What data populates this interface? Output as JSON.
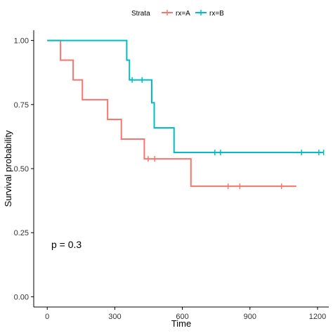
{
  "chart_data": {
    "type": "line",
    "subtype": "kaplan-meier",
    "xlabel": "Time",
    "ylabel": "Survival probability",
    "xlim": [
      -60,
      1250
    ],
    "ylim": [
      -0.04,
      1.04
    ],
    "x_ticks": [
      0,
      300,
      600,
      900,
      1200
    ],
    "x_tick_labels": [
      "0",
      "300",
      "600",
      "900",
      "1200"
    ],
    "y_ticks": [
      0,
      0.25,
      0.5,
      0.75,
      1.0
    ],
    "y_tick_labels": [
      "0.00",
      "0.25",
      "0.50",
      "0.75",
      "1.00"
    ],
    "grid": false,
    "legend": {
      "title": "Strata",
      "placement": "top-center",
      "entries": [
        "rx=A",
        "rx=B"
      ]
    },
    "annotation": "p = 0.3",
    "series": [
      {
        "name": "rx=A",
        "color": "#F8766D",
        "steps": [
          {
            "x": 0,
            "y": 1.0
          },
          {
            "x": 59,
            "y": 0.923
          },
          {
            "x": 115,
            "y": 0.846
          },
          {
            "x": 156,
            "y": 0.769
          },
          {
            "x": 268,
            "y": 0.692
          },
          {
            "x": 329,
            "y": 0.615
          },
          {
            "x": 431,
            "y": 0.538
          },
          {
            "x": 638,
            "y": 0.431
          },
          {
            "x": 1106,
            "y": 0.431
          }
        ],
        "censored": [
          448,
          477,
          803,
          855,
          1040
        ]
      },
      {
        "name": "rx=B",
        "color": "#00BFC4",
        "steps": [
          {
            "x": 0,
            "y": 1.0
          },
          {
            "x": 353,
            "y": 0.923
          },
          {
            "x": 365,
            "y": 0.846
          },
          {
            "x": 464,
            "y": 0.757
          },
          {
            "x": 475,
            "y": 0.659
          },
          {
            "x": 563,
            "y": 0.563
          },
          {
            "x": 1227,
            "y": 0.563
          }
        ],
        "censored": [
          377,
          421,
          744,
          769,
          1129,
          1206,
          1227
        ]
      }
    ]
  }
}
